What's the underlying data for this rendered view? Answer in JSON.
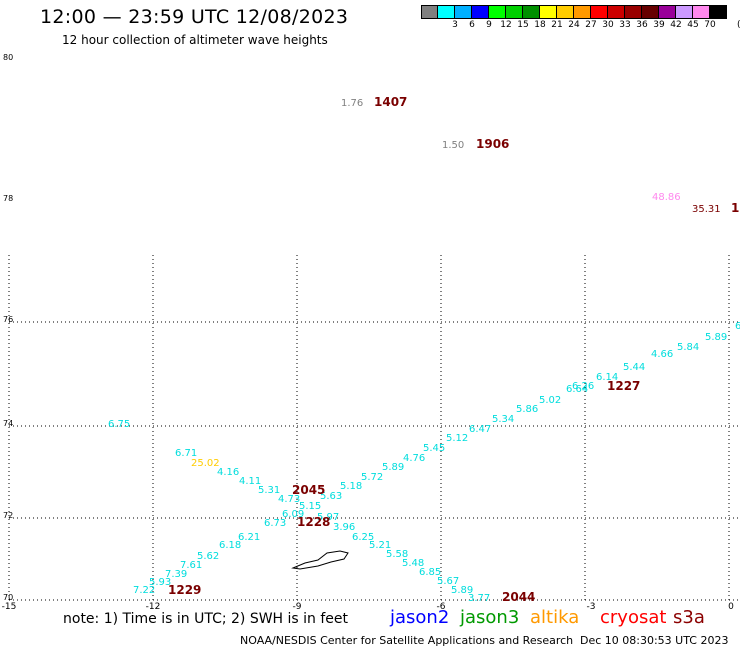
{
  "header": {
    "title": "12:00 — 23:59 UTC 12/08/2023",
    "subtitle": "12 hour collection of altimeter wave heights"
  },
  "legend": {
    "unit": "(ft)",
    "items": [
      {
        "label": "",
        "color": "#808080"
      },
      {
        "label": "3",
        "color": "#00ffff"
      },
      {
        "label": "6",
        "color": "#00b0ff"
      },
      {
        "label": "9",
        "color": "#0000ff"
      },
      {
        "label": "12",
        "color": "#00ff00"
      },
      {
        "label": "15",
        "color": "#00d000"
      },
      {
        "label": "18",
        "color": "#009000"
      },
      {
        "label": "21",
        "color": "#ffff00"
      },
      {
        "label": "24",
        "color": "#ffcc00"
      },
      {
        "label": "27",
        "color": "#ff9900"
      },
      {
        "label": "30",
        "color": "#ff0000"
      },
      {
        "label": "33",
        "color": "#cc0000"
      },
      {
        "label": "36",
        "color": "#990000"
      },
      {
        "label": "39",
        "color": "#660000"
      },
      {
        "label": "42",
        "color": "#990099"
      },
      {
        "label": "45",
        "color": "#cc99ff"
      },
      {
        "label": "70",
        "color": "#ff88ee"
      },
      {
        "label": "",
        "color": "#000000"
      }
    ]
  },
  "map": {
    "lon_ticks": [
      "-15",
      "-12",
      "-9",
      "-6",
      "-3",
      "0"
    ],
    "lat_ticks": [
      "80",
      "78",
      "76",
      "74",
      "72",
      "70"
    ],
    "wave_labels": [
      {
        "text": "1.76",
        "color": "#808080"
      },
      {
        "text": "1407",
        "color": "#7a0000"
      },
      {
        "text": "1.50",
        "color": "#808080"
      },
      {
        "text": "1906",
        "color": "#7a0000"
      },
      {
        "text": "48.86",
        "color": "#ff88ee"
      },
      {
        "text": "35.31",
        "color": "#7a0000"
      },
      {
        "text": "1",
        "color": "#7a0000"
      },
      {
        "text": "6",
        "color": "#00dddd"
      },
      {
        "text": "5.89",
        "color": "#00dddd"
      },
      {
        "text": "5.84",
        "color": "#00dddd"
      },
      {
        "text": "4.66",
        "color": "#00dddd"
      },
      {
        "text": "5.44",
        "color": "#00dddd"
      },
      {
        "text": "6.14",
        "color": "#00dddd"
      },
      {
        "text": "6.26",
        "color": "#00dddd"
      },
      {
        "text": "6.64",
        "color": "#00dddd"
      },
      {
        "text": "1227",
        "color": "#7a0000"
      },
      {
        "text": "5.02",
        "color": "#00dddd"
      },
      {
        "text": "5.86",
        "color": "#00dddd"
      },
      {
        "text": "5.34",
        "color": "#00dddd"
      },
      {
        "text": "6.47",
        "color": "#00dddd"
      },
      {
        "text": "5.12",
        "color": "#00dddd"
      },
      {
        "text": "5.45",
        "color": "#00dddd"
      },
      {
        "text": "4.76",
        "color": "#00dddd"
      },
      {
        "text": "5.89",
        "color": "#00dddd"
      },
      {
        "text": "5.72",
        "color": "#00dddd"
      },
      {
        "text": "5.18",
        "color": "#00dddd"
      },
      {
        "text": "5.63",
        "color": "#00dddd"
      },
      {
        "text": "6.75",
        "color": "#00dddd"
      },
      {
        "text": "6.71",
        "color": "#00dddd"
      },
      {
        "text": "25.02",
        "color": "#ffcc00"
      },
      {
        "text": "4.16",
        "color": "#00dddd"
      },
      {
        "text": "4.11",
        "color": "#00dddd"
      },
      {
        "text": "5.31",
        "color": "#00dddd"
      },
      {
        "text": "2045",
        "color": "#7a0000"
      },
      {
        "text": "4.73",
        "color": "#00dddd"
      },
      {
        "text": "5.15",
        "color": "#00dddd"
      },
      {
        "text": "6.09",
        "color": "#00dddd"
      },
      {
        "text": "5.97",
        "color": "#00dddd"
      },
      {
        "text": "6.73",
        "color": "#00dddd"
      },
      {
        "text": "1228",
        "color": "#7a0000"
      },
      {
        "text": "3.96",
        "color": "#00dddd"
      },
      {
        "text": "6.25",
        "color": "#00dddd"
      },
      {
        "text": "6.21",
        "color": "#00dddd"
      },
      {
        "text": "6.18",
        "color": "#00dddd"
      },
      {
        "text": "5.21",
        "color": "#00dddd"
      },
      {
        "text": "5.62",
        "color": "#00dddd"
      },
      {
        "text": "5.58",
        "color": "#00dddd"
      },
      {
        "text": "7.61",
        "color": "#00dddd"
      },
      {
        "text": "5.48",
        "color": "#00dddd"
      },
      {
        "text": "7.39",
        "color": "#00dddd"
      },
      {
        "text": "6.85",
        "color": "#00dddd"
      },
      {
        "text": "5.93",
        "color": "#00dddd"
      },
      {
        "text": "5.67",
        "color": "#00dddd"
      },
      {
        "text": "7.22",
        "color": "#00dddd"
      },
      {
        "text": "1229",
        "color": "#7a0000"
      },
      {
        "text": "5.89",
        "color": "#00dddd"
      },
      {
        "text": "3.77",
        "color": "#00dddd"
      },
      {
        "text": "2044",
        "color": "#7a0000"
      }
    ]
  },
  "note": "note: 1) Time is in UTC; 2) SWH is in feet",
  "satellites": [
    {
      "name": "jason2",
      "color": "#0000ff"
    },
    {
      "name": "jason3",
      "color": "#009900"
    },
    {
      "name": "altika",
      "color": "#ff9900"
    },
    {
      "name": "cryosat",
      "color": "#ff0000"
    },
    {
      "name": "s3a",
      "color": "#8b0000"
    }
  ],
  "footer": {
    "credit": "NOAA/NESDIS Center for Satellite Applications and Research",
    "timestamp": "Dec 10 08:30:53 UTC 2023"
  }
}
